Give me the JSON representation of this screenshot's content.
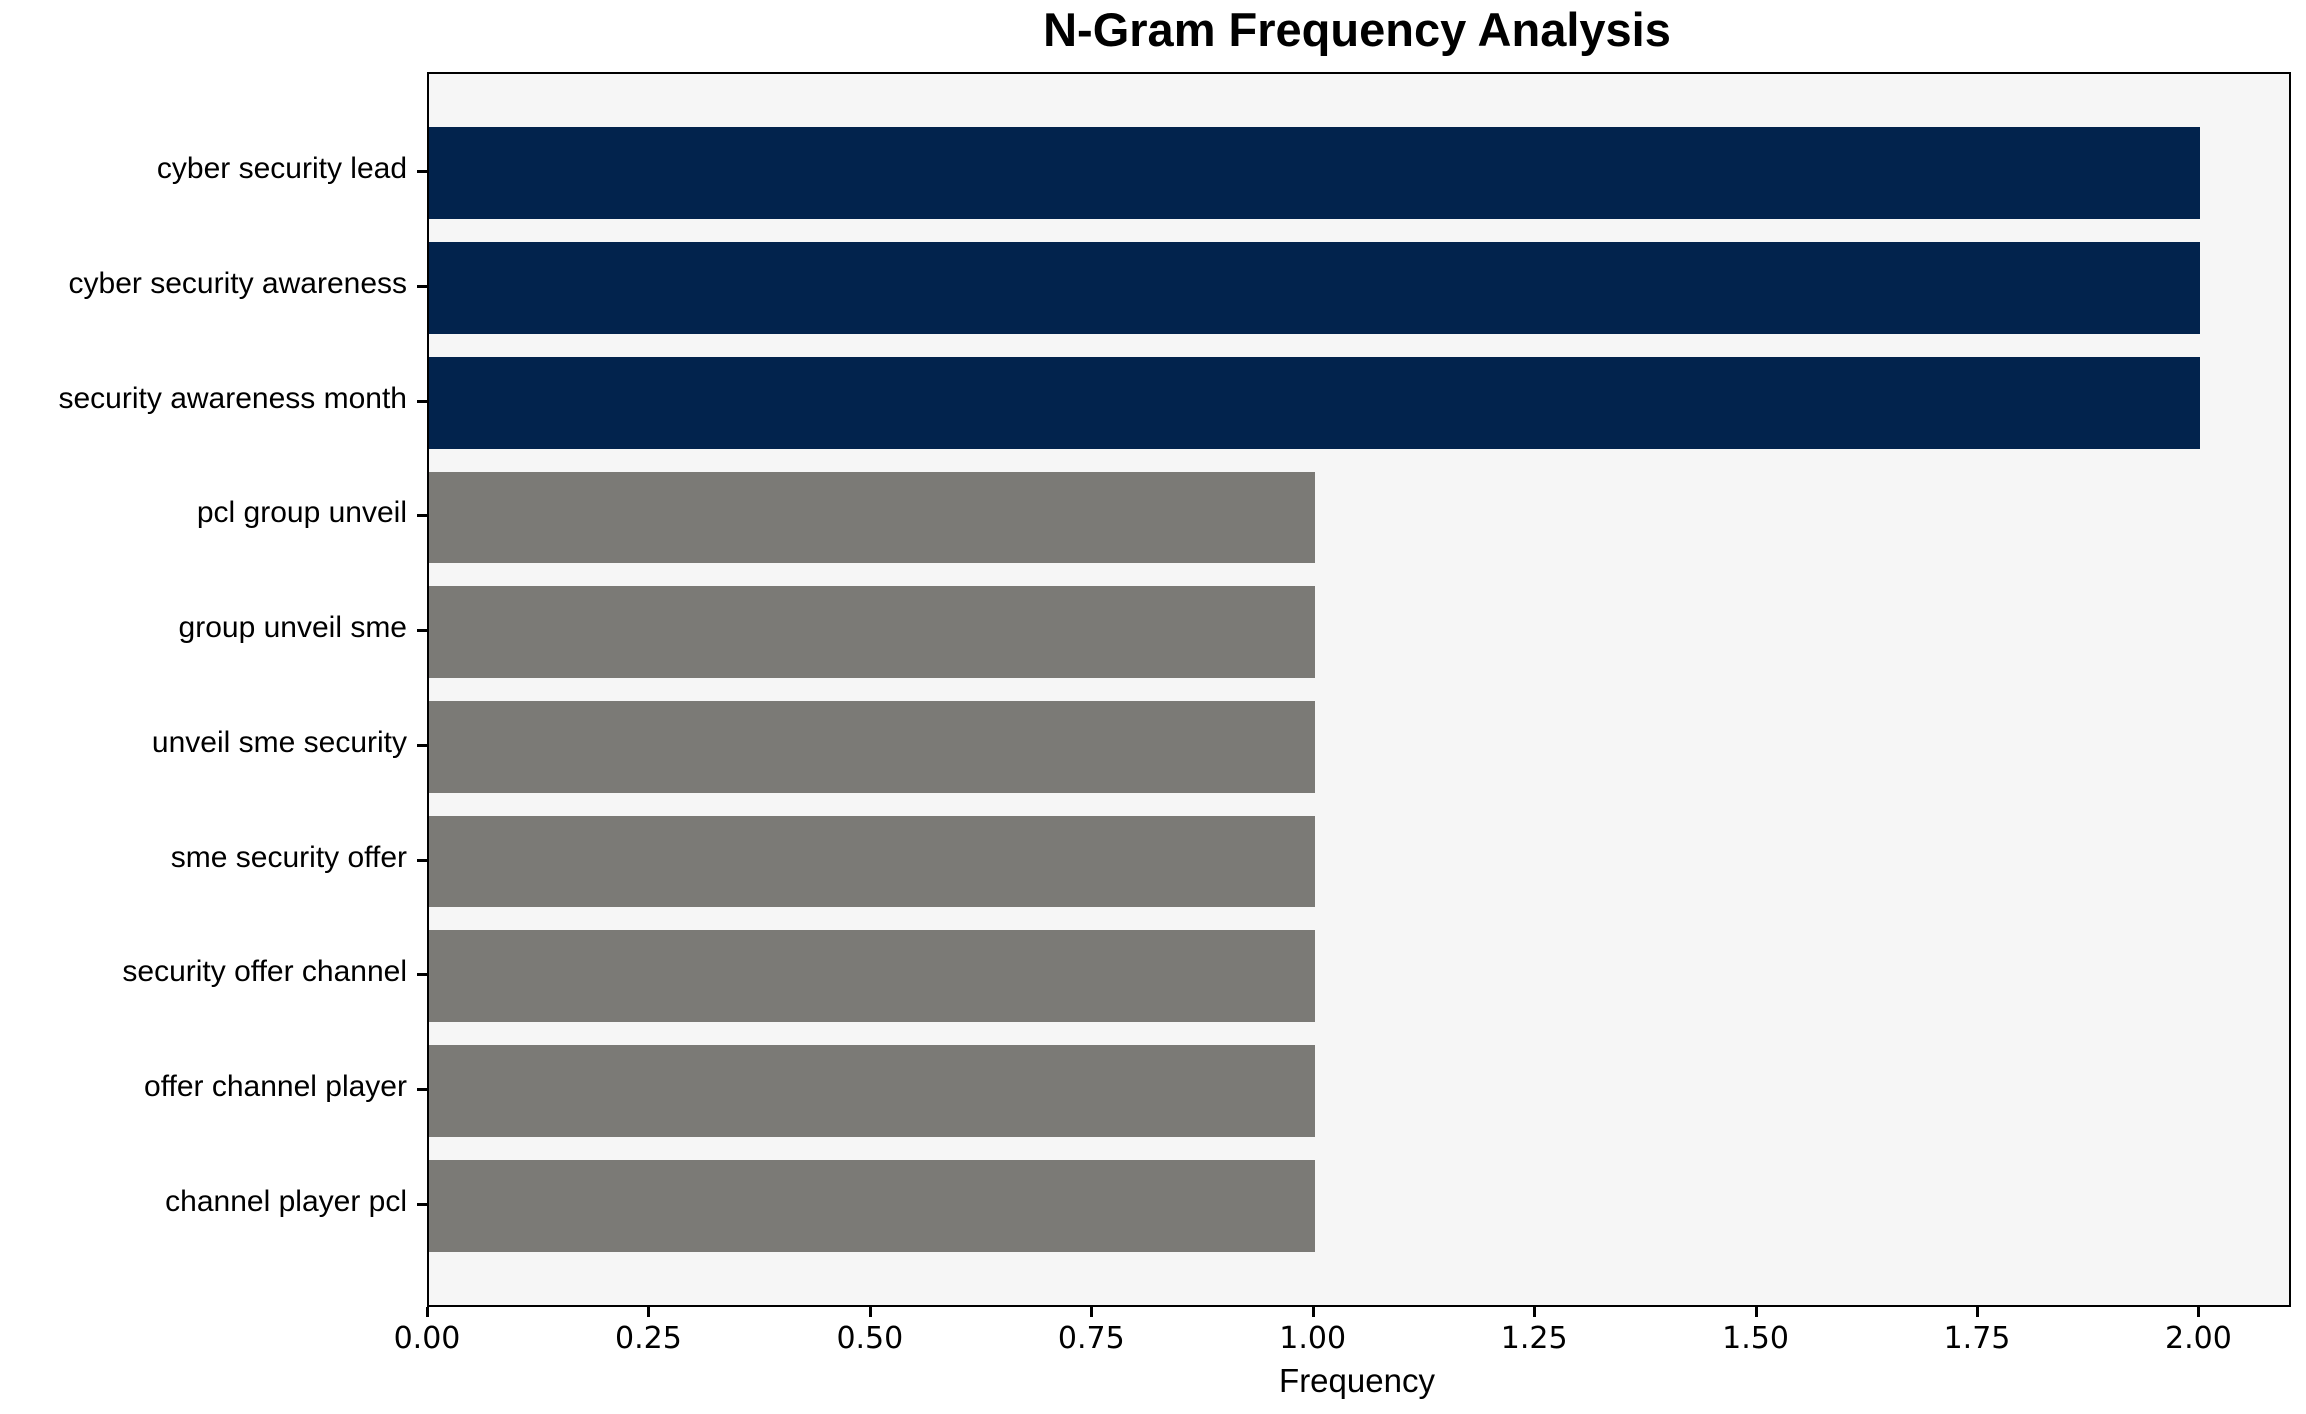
{
  "chart_data": {
    "type": "bar",
    "orientation": "horizontal",
    "title": "N-Gram Frequency Analysis",
    "xlabel": "Frequency",
    "ylabel": "",
    "categories": [
      "cyber security lead",
      "cyber security awareness",
      "security awareness month",
      "pcl group unveil",
      "group unveil sme",
      "unveil sme security",
      "sme security offer",
      "security offer channel",
      "offer channel player",
      "channel player pcl"
    ],
    "values": [
      2,
      2,
      2,
      1,
      1,
      1,
      1,
      1,
      1,
      1
    ],
    "bar_colors": [
      "#02234d",
      "#02234d",
      "#02234d",
      "#7b7a76",
      "#7b7a76",
      "#7b7a76",
      "#7b7a76",
      "#7b7a76",
      "#7b7a76",
      "#7b7a76"
    ],
    "xlim": [
      0,
      2.1
    ],
    "xticks": [
      {
        "value": 0.0,
        "label": "0.00"
      },
      {
        "value": 0.25,
        "label": "0.25"
      },
      {
        "value": 0.5,
        "label": "0.50"
      },
      {
        "value": 0.75,
        "label": "0.75"
      },
      {
        "value": 1.0,
        "label": "1.00"
      },
      {
        "value": 1.25,
        "label": "1.25"
      },
      {
        "value": 1.5,
        "label": "1.50"
      },
      {
        "value": 1.75,
        "label": "1.75"
      },
      {
        "value": 2.0,
        "label": "2.00"
      }
    ],
    "grid": false,
    "legend": null,
    "colors": {
      "high_frequency_bar": "#02234d",
      "low_frequency_bar": "#7b7a76",
      "plot_background": "#f6f6f6",
      "figure_background": "#ffffff",
      "spine": "#000000",
      "text": "#000000"
    }
  }
}
